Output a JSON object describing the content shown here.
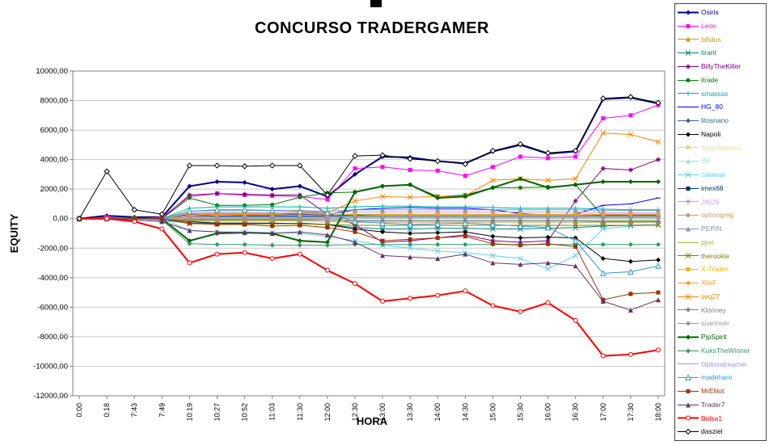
{
  "chart_data": {
    "type": "line",
    "title": "CONCURSO TRADERGAMER",
    "xlabel": "HORA",
    "ylabel": "EQUITY",
    "ylim": [
      -12000,
      10000
    ],
    "ytick_step": 2000,
    "ytick_labels": [
      "10000,00",
      "8000,00",
      "6000,00",
      "4000,00",
      "2000,00",
      "0,00",
      "-2000,00",
      "-4000,00",
      "-6000,00",
      "-8000,00",
      "-10000,00",
      "-12000,00"
    ],
    "grid": "horizontal",
    "legend_position": "right",
    "categories": [
      "0:00",
      "0:18",
      "7:43",
      "7:49",
      "10:19",
      "10:27",
      "10:52",
      "11:03",
      "11:30",
      "12:00",
      "12:30",
      "13:00",
      "13:30",
      "14:00",
      "14:30",
      "15:00",
      "15:30",
      "16:00",
      "16:30",
      "17:00",
      "17:30",
      "18:00"
    ],
    "series": [
      {
        "name": "Osiris",
        "color": "#000080",
        "marker": "diamond",
        "width": 2,
        "values": [
          0,
          200,
          100,
          100,
          2200,
          2500,
          2450,
          2000,
          2200,
          1500,
          3000,
          4200,
          4150,
          3900,
          3750,
          4550,
          5000,
          4400,
          4550,
          8100,
          8200,
          7800
        ]
      },
      {
        "name": "Leon",
        "color": "#FF00FF",
        "marker": "square",
        "width": 1,
        "values": [
          0,
          100,
          0,
          100,
          1500,
          1700,
          1600,
          1550,
          1500,
          1300,
          3400,
          3500,
          3300,
          3250,
          2900,
          3500,
          4200,
          4100,
          4200,
          6800,
          7000,
          7700
        ]
      },
      {
        "name": "bifidus",
        "color": "#C0A000",
        "marker": "triangle",
        "width": 1,
        "values": [
          0,
          0,
          0,
          0,
          300,
          300,
          250,
          250,
          300,
          250,
          150,
          150,
          150,
          150,
          150,
          150,
          150,
          150,
          150,
          150,
          150,
          150
        ]
      },
      {
        "name": "tirant",
        "color": "#008080",
        "marker": "x",
        "width": 1,
        "values": [
          0,
          0,
          0,
          -100,
          -300,
          -300,
          -300,
          -350,
          -300,
          -400,
          -600,
          -700,
          -700,
          -650,
          -650,
          -700,
          -700,
          -650,
          -600,
          -500,
          -450,
          -400
        ]
      },
      {
        "name": "BillyTheKiller",
        "color": "#800080",
        "marker": "asterisk",
        "width": 1,
        "values": [
          0,
          0,
          0,
          0,
          1600,
          1700,
          1650,
          1600,
          1600,
          300,
          -400,
          -1600,
          -1500,
          -1300,
          -1100,
          -1500,
          -1600,
          -1500,
          1200,
          3400,
          3300,
          4000
        ]
      },
      {
        "name": "itrade",
        "color": "#008000",
        "marker": "circle",
        "width": 1,
        "values": [
          0,
          0,
          0,
          0,
          1400,
          900,
          900,
          950,
          1450,
          1750,
          1800,
          2200,
          2300,
          1500,
          1600,
          2100,
          2100,
          2150,
          2300,
          150,
          100,
          200
        ]
      },
      {
        "name": "smassax",
        "color": "#00AAAA",
        "marker": "plus",
        "width": 1,
        "values": [
          0,
          0,
          0,
          0,
          700,
          800,
          800,
          800,
          800,
          700,
          800,
          850,
          850,
          800,
          800,
          750,
          700,
          700,
          700,
          650,
          600,
          600
        ]
      },
      {
        "name": "HG_80",
        "color": "#0000FF",
        "marker": "dash",
        "width": 1,
        "values": [
          0,
          0,
          0,
          0,
          300,
          400,
          400,
          350,
          300,
          300,
          600,
          700,
          750,
          700,
          700,
          600,
          350,
          250,
          300,
          900,
          1000,
          1400
        ]
      },
      {
        "name": "litosnano",
        "color": "#336699",
        "marker": "diamond",
        "width": 1,
        "values": [
          0,
          0,
          0,
          0,
          100,
          100,
          100,
          100,
          100,
          100,
          150,
          150,
          150,
          150,
          150,
          150,
          150,
          150,
          150,
          150,
          150,
          150
        ]
      },
      {
        "name": "Napoli",
        "color": "#000000",
        "marker": "diamond",
        "width": 1,
        "values": [
          0,
          0,
          0,
          0,
          -200,
          -300,
          -300,
          -300,
          -350,
          -400,
          -700,
          -900,
          -1000,
          -950,
          -900,
          -1200,
          -1300,
          -1250,
          -1300,
          -2700,
          -2900,
          -2800
        ]
      },
      {
        "name": "TonyJimenez",
        "color": "#DDDD88",
        "marker": "square",
        "width": 1,
        "values": [
          0,
          0,
          0,
          0,
          50,
          50,
          50,
          50,
          50,
          50,
          100,
          100,
          100,
          100,
          100,
          100,
          100,
          100,
          100,
          100,
          100,
          100
        ]
      },
      {
        "name": "BB",
        "color": "#AADDDD",
        "marker": "triangle",
        "width": 1,
        "values": [
          0,
          0,
          0,
          0,
          -50,
          -50,
          -50,
          -50,
          -50,
          -50,
          -100,
          -100,
          -100,
          -100,
          -100,
          -100,
          -100,
          -100,
          -100,
          -100,
          -100,
          -100
        ]
      },
      {
        "name": "calamar",
        "color": "#66CCEE",
        "marker": "x",
        "width": 1,
        "values": [
          0,
          0,
          0,
          0,
          -800,
          -900,
          -900,
          -950,
          -1000,
          -1200,
          -1500,
          -1800,
          -2000,
          -2200,
          -2300,
          -2500,
          -2700,
          -3400,
          -2500,
          -700,
          -500,
          -400
        ]
      },
      {
        "name": "imex68",
        "color": "#003366",
        "marker": "square",
        "width": 1,
        "values": [
          0,
          0,
          0,
          0,
          200,
          200,
          200,
          200,
          200,
          200,
          250,
          250,
          250,
          250,
          250,
          250,
          250,
          250,
          250,
          250,
          250,
          250
        ]
      },
      {
        "name": "JACN",
        "color": "#CC99FF",
        "marker": "diamond",
        "width": 1,
        "values": [
          0,
          0,
          0,
          0,
          400,
          400,
          400,
          400,
          400,
          350,
          450,
          450,
          450,
          450,
          450,
          450,
          450,
          450,
          450,
          400,
          400,
          400
        ]
      },
      {
        "name": "optiongreg",
        "color": "#CC9966",
        "marker": "circle",
        "width": 1,
        "values": [
          0,
          0,
          0,
          0,
          -150,
          -150,
          -150,
          -150,
          -150,
          -200,
          -250,
          -250,
          -250,
          -250,
          -250,
          -250,
          -250,
          -250,
          -250,
          -250,
          -250,
          -250
        ]
      },
      {
        "name": "PEPIN",
        "color": "#7799BB",
        "marker": "triangle",
        "width": 1,
        "values": [
          0,
          0,
          0,
          0,
          500,
          550,
          550,
          550,
          550,
          500,
          600,
          600,
          600,
          600,
          600,
          600,
          600,
          600,
          600,
          550,
          550,
          550
        ]
      },
      {
        "name": "ppvi",
        "color": "#99BB33",
        "marker": "dash",
        "width": 1,
        "values": [
          0,
          0,
          0,
          0,
          -100,
          -100,
          -100,
          -100,
          -100,
          -100,
          -150,
          -150,
          -150,
          -150,
          -150,
          -150,
          -150,
          -150,
          -150,
          -150,
          -150,
          -150
        ]
      },
      {
        "name": "therookie",
        "color": "#808000",
        "marker": "x",
        "width": 1,
        "values": [
          0,
          0,
          0,
          0,
          -350,
          -350,
          -350,
          -350,
          -350,
          -400,
          -450,
          -450,
          -450,
          -450,
          -450,
          -450,
          -450,
          -450,
          -450,
          -450,
          -450,
          -450
        ]
      },
      {
        "name": "X-Trader",
        "color": "#E6B800",
        "marker": "square",
        "width": 1,
        "values": [
          0,
          0,
          0,
          0,
          350,
          350,
          350,
          350,
          350,
          300,
          300,
          300,
          300,
          300,
          300,
          300,
          300,
          300,
          300,
          300,
          300,
          300
        ]
      },
      {
        "name": "XileF",
        "color": "#FF9933",
        "marker": "diamond",
        "width": 1,
        "values": [
          0,
          0,
          0,
          0,
          100,
          150,
          150,
          150,
          150,
          150,
          200,
          250,
          250,
          250,
          250,
          250,
          250,
          250,
          250,
          300,
          300,
          300
        ]
      },
      {
        "name": "seq27",
        "color": "#FF8000",
        "marker": "x",
        "width": 1,
        "values": [
          0,
          0,
          0,
          0,
          200,
          300,
          300,
          300,
          400,
          400,
          1200,
          1500,
          1450,
          1500,
          1550,
          2600,
          2700,
          2600,
          2700,
          5800,
          5700,
          5200
        ]
      },
      {
        "name": "Klonney",
        "color": "#808080",
        "marker": "diamond",
        "width": 1,
        "values": [
          0,
          0,
          0,
          0,
          -50,
          -50,
          -50,
          -50,
          -50,
          -100,
          -150,
          -150,
          -150,
          -150,
          -150,
          -150,
          -150,
          -150,
          -150,
          -200,
          -200,
          -200
        ]
      },
      {
        "name": "suarinver",
        "color": "#999999",
        "marker": "circle",
        "width": 1,
        "values": [
          0,
          0,
          0,
          0,
          0,
          0,
          0,
          0,
          0,
          0,
          50,
          50,
          50,
          50,
          50,
          50,
          50,
          50,
          50,
          50,
          50,
          50
        ]
      },
      {
        "name": "PipSpirit",
        "color": "#006400",
        "marker": "diamond",
        "width": 2,
        "values": [
          0,
          0,
          0,
          0,
          -1500,
          -1000,
          -950,
          -1000,
          -1500,
          -1600,
          1800,
          2200,
          2300,
          1400,
          1500,
          2100,
          2700,
          2100,
          2300,
          2500,
          2500,
          2500
        ]
      },
      {
        "name": "KuksTheWinner",
        "color": "#339966",
        "marker": "diamond",
        "width": 1,
        "values": [
          0,
          0,
          0,
          -100,
          -1700,
          -1750,
          -1750,
          -1800,
          -1800,
          -1800,
          -1750,
          -1750,
          -1750,
          -1750,
          -1750,
          -1750,
          -1750,
          -1750,
          -1750,
          -1750,
          -1750,
          -1750
        ]
      },
      {
        "name": "Optiondreamer",
        "color": "#9999EE",
        "marker": "dash",
        "width": 1,
        "values": [
          0,
          0,
          0,
          0,
          150,
          150,
          150,
          150,
          150,
          150,
          200,
          200,
          200,
          200,
          200,
          200,
          200,
          200,
          200,
          200,
          200,
          200
        ]
      },
      {
        "name": "madeharo",
        "color": "#3399CC",
        "marker": "triangle-open",
        "width": 1,
        "values": [
          0,
          0,
          0,
          0,
          500,
          600,
          600,
          550,
          500,
          400,
          -200,
          -300,
          -400,
          -350,
          -300,
          -400,
          -500,
          -600,
          -1500,
          -3700,
          -3600,
          -3200
        ]
      },
      {
        "name": "MrElliot",
        "color": "#993300",
        "marker": "square",
        "width": 1,
        "values": [
          0,
          0,
          0,
          0,
          -300,
          -400,
          -400,
          -500,
          -450,
          -600,
          -900,
          -1500,
          -1400,
          -1300,
          -1200,
          -1700,
          -1800,
          -1700,
          -1900,
          -5500,
          -5100,
          -5000
        ]
      },
      {
        "name": "Trader7",
        "color": "#663366",
        "marker": "triangle",
        "width": 1,
        "values": [
          0,
          0,
          -100,
          -200,
          -800,
          -900,
          -950,
          -1000,
          -900,
          -1100,
          -1600,
          -2500,
          -2600,
          -2700,
          -2400,
          -3000,
          -3100,
          -3000,
          -3200,
          -5600,
          -6200,
          -5500
        ]
      },
      {
        "name": "Bolsa1",
        "color": "#FF0000",
        "marker": "circle-open",
        "width": 2,
        "values": [
          0,
          0,
          -200,
          -700,
          -3000,
          -2400,
          -2300,
          -2700,
          -2400,
          -3500,
          -4400,
          -5600,
          -5400,
          -5200,
          -4900,
          -5900,
          -6300,
          -5700,
          -6900,
          -9300,
          -9200,
          -8900
        ]
      },
      {
        "name": "dasziel",
        "color": "#000000",
        "marker": "diamond-open",
        "width": 1,
        "values": [
          0,
          3200,
          600,
          300,
          3600,
          3600,
          3550,
          3600,
          3600,
          1600,
          4250,
          4300,
          4050,
          3900,
          3700,
          4600,
          5050,
          4450,
          4600,
          8150,
          8250,
          7850
        ]
      }
    ]
  }
}
